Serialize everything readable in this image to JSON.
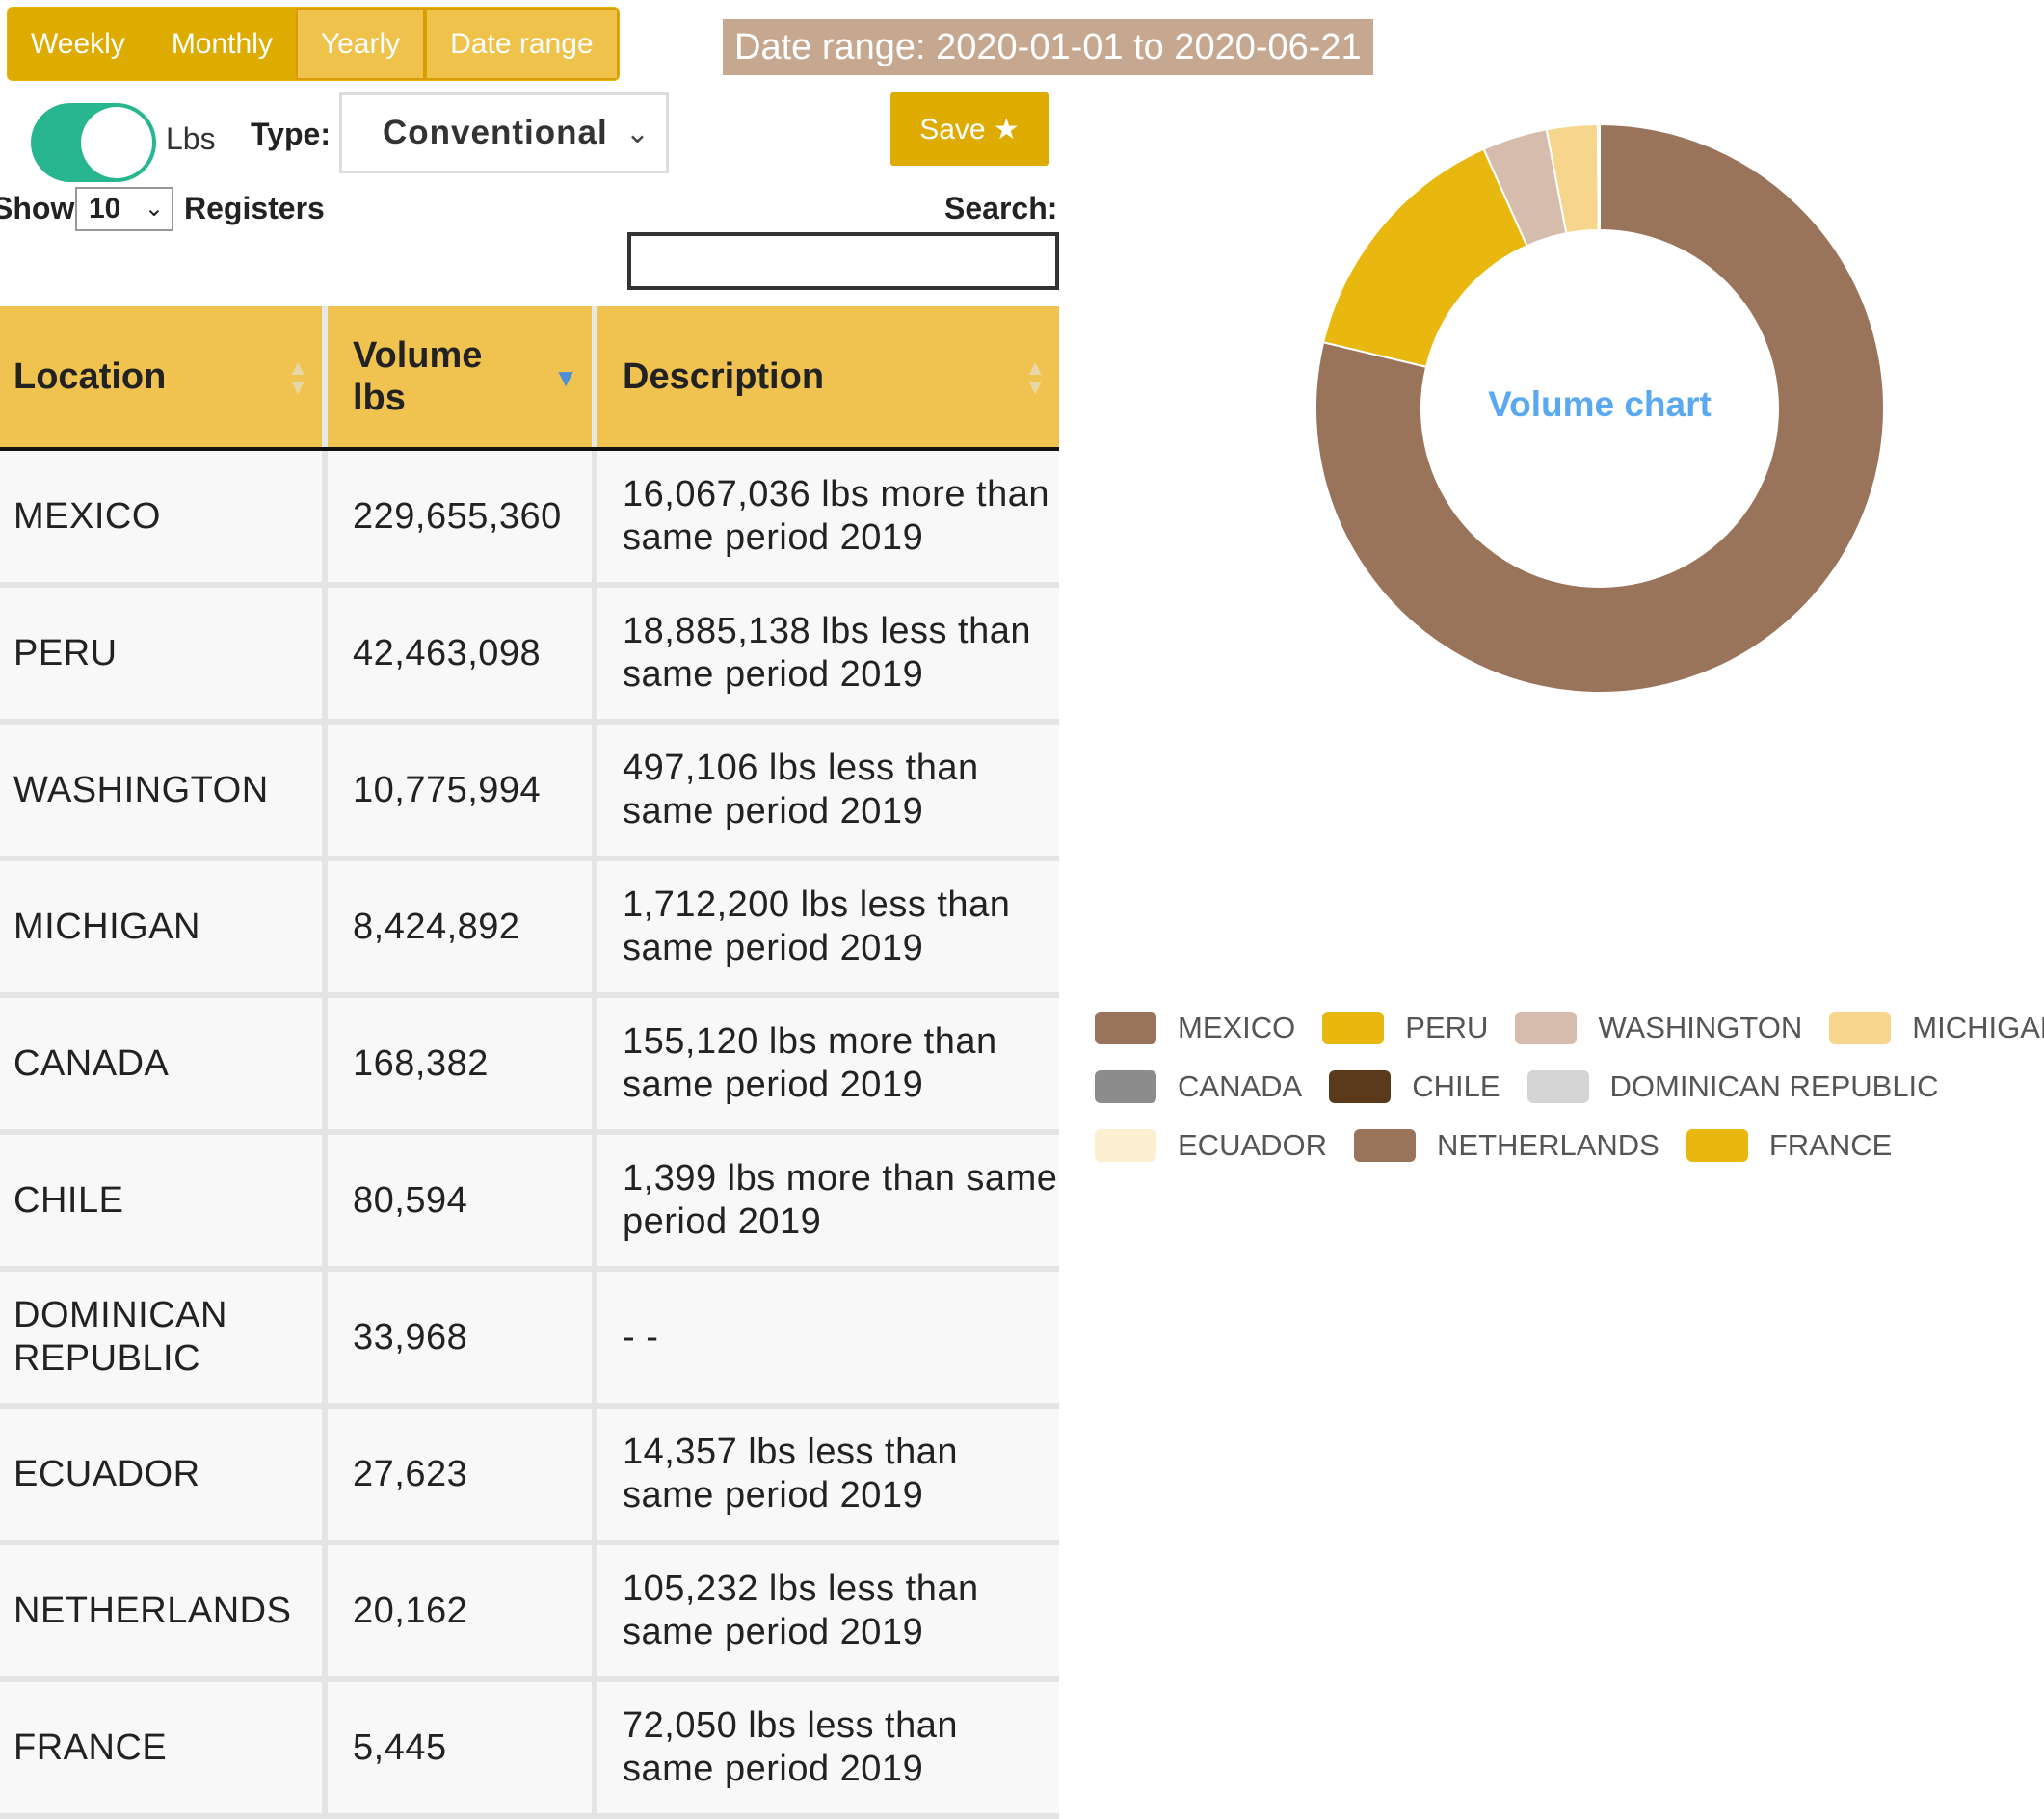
{
  "period_buttons": [
    {
      "label": "Weekly",
      "active": false
    },
    {
      "label": "Monthly",
      "active": false
    },
    {
      "label": "Yearly",
      "active": true
    },
    {
      "label": "Date range",
      "active": true
    }
  ],
  "date_range_label": "Date range: 2020-01-01 to 2020-06-21",
  "toggle": {
    "unit_label": "Lbs",
    "on": true
  },
  "type_filter": {
    "label": "Type:",
    "value": "Conventional"
  },
  "save_button": {
    "label": "Save ★"
  },
  "pagination": {
    "show_label": "Show",
    "value": "10",
    "registers_label": "Registers"
  },
  "search": {
    "label": "Search:",
    "value": ""
  },
  "table": {
    "headers": [
      "Location",
      "Volume lbs",
      "Description"
    ],
    "rows": [
      {
        "location": "MEXICO",
        "volume": "229,655,360",
        "description": "16,067,036 lbs more than same period 2019"
      },
      {
        "location": "PERU",
        "volume": "42,463,098",
        "description": "18,885,138 lbs less than same period 2019"
      },
      {
        "location": "WASHINGTON",
        "volume": "10,775,994",
        "description": "497,106 lbs less than same period 2019"
      },
      {
        "location": "MICHIGAN",
        "volume": "8,424,892",
        "description": "1,712,200 lbs less than same period 2019"
      },
      {
        "location": "CANADA",
        "volume": "168,382",
        "description": "155,120 lbs more than same period 2019"
      },
      {
        "location": "CHILE",
        "volume": "80,594",
        "description": "1,399 lbs more than same period 2019"
      },
      {
        "location": "DOMINICAN REPUBLIC",
        "volume": "33,968",
        "description": "- -"
      },
      {
        "location": "ECUADOR",
        "volume": "27,623",
        "description": "14,357 lbs less than same period 2019"
      },
      {
        "location": "NETHERLANDS",
        "volume": "20,162",
        "description": "105,232 lbs less than same period 2019"
      },
      {
        "location": "FRANCE",
        "volume": "5,445",
        "description": "72,050 lbs less than same period 2019"
      }
    ]
  },
  "chart_data": {
    "type": "pie",
    "title": "Volume chart",
    "donut": true,
    "categories": [
      "MEXICO",
      "PERU",
      "WASHINGTON",
      "MICHIGAN",
      "CANADA",
      "CHILE",
      "DOMINICAN REPUBLIC",
      "ECUADOR",
      "NETHERLANDS",
      "FRANCE"
    ],
    "values": [
      229655360,
      42463098,
      10775994,
      8424892,
      168382,
      80594,
      33968,
      27623,
      20162,
      5445
    ],
    "colors": [
      "#99735a",
      "#e8b810",
      "#d6bcac",
      "#f5d68c",
      "#8c8c8c",
      "#5a3a1a",
      "#d4d4d4",
      "#fcefcf",
      "#99735a",
      "#e8b810"
    ],
    "legend_position": "bottom"
  },
  "colors": {
    "accent": "#deab00",
    "header": "#f0c350",
    "toggle": "#28b690",
    "range_label": "#c6a78f",
    "chart_title": "#5aa9f0"
  }
}
